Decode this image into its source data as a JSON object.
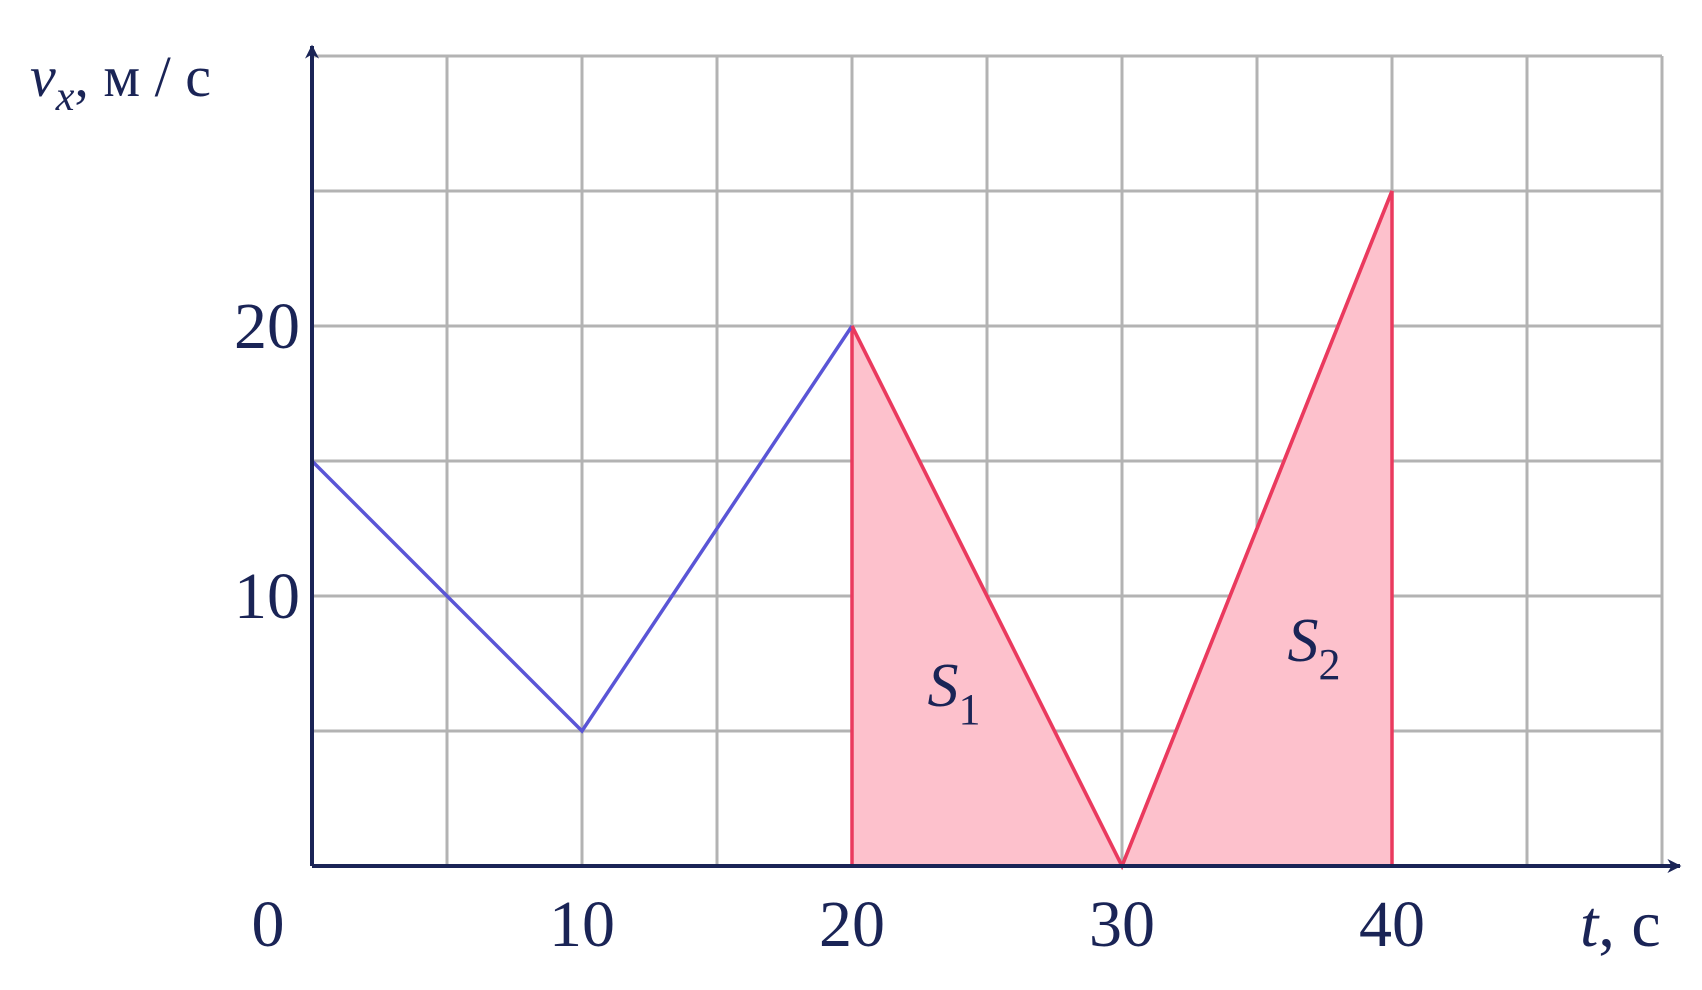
{
  "chart_data": {
    "type": "line",
    "ylabel": "v",
    "ylabel_sub": "x",
    "ylabel_unit": ", м / с",
    "xlabel": "t",
    "xlabel_unit": ", с",
    "xlim": [
      0,
      50
    ],
    "ylim": [
      0,
      30
    ],
    "xticks": [
      0,
      10,
      20,
      30,
      40
    ],
    "yticks": [
      10,
      20
    ],
    "xgrid": [
      0,
      5,
      10,
      15,
      20,
      25,
      30,
      35,
      40,
      45,
      50
    ],
    "ygrid": [
      0,
      5,
      10,
      15,
      20,
      25,
      30
    ],
    "grid": true,
    "series": [
      {
        "color": "#5a55d6",
        "x": [
          0,
          10,
          20
        ],
        "values": [
          15,
          5,
          20
        ]
      },
      {
        "color": "#ea3a5e",
        "x": [
          20,
          30,
          40
        ],
        "values": [
          20,
          0,
          25
        ]
      }
    ],
    "areas": [
      {
        "label": "S",
        "sub": "1",
        "color": "#fdc1cc",
        "edge": "#ea3a5e",
        "x": [
          20,
          20,
          30
        ],
        "values": [
          0,
          20,
          0
        ]
      },
      {
        "label": "S",
        "sub": "2",
        "color": "#fdc1cc",
        "edge": "#ea3a5e",
        "x": [
          30,
          40,
          40
        ],
        "values": [
          0,
          25,
          0
        ]
      }
    ]
  }
}
